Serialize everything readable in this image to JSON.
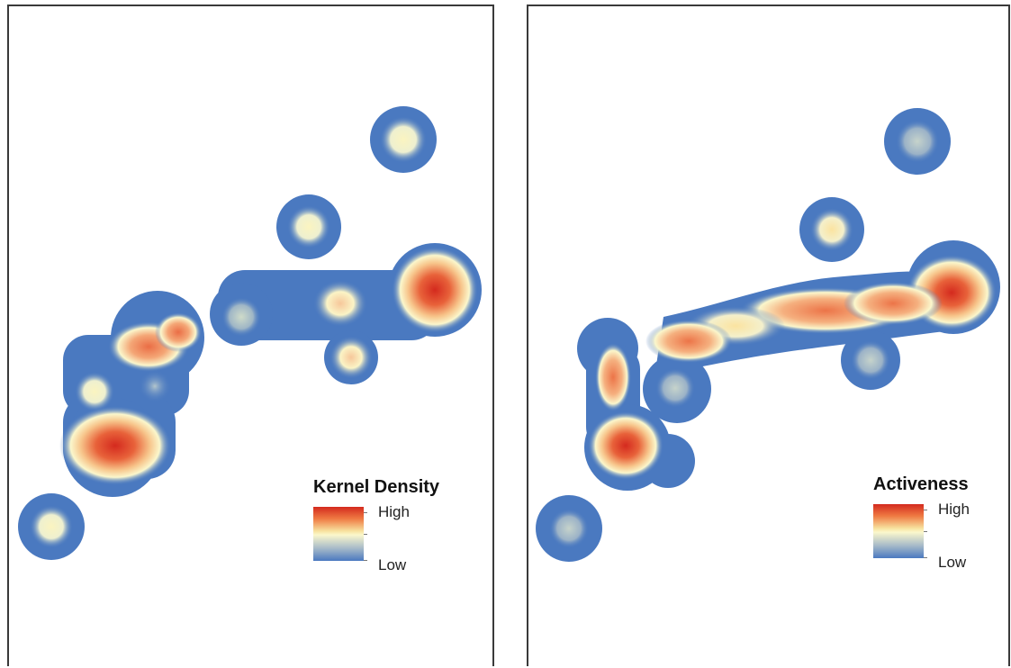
{
  "maps": [
    {
      "legend": {
        "title": "Kernel Density",
        "high": "High",
        "low": "Low"
      },
      "hotspots": [
        {
          "name": "north-east-isolated",
          "intensity": 0.55
        },
        {
          "name": "north-central-isolated",
          "intensity": 0.45
        },
        {
          "name": "east-peak",
          "intensity": 1.0
        },
        {
          "name": "central-east",
          "intensity": 0.7
        },
        {
          "name": "central-east-lower",
          "intensity": 0.6
        },
        {
          "name": "central",
          "intensity": 0.25
        },
        {
          "name": "west-upper",
          "intensity": 0.8
        },
        {
          "name": "west-middle",
          "intensity": 0.45
        },
        {
          "name": "south-west-peak",
          "intensity": 0.95
        },
        {
          "name": "far-south-west",
          "intensity": 0.5
        }
      ]
    },
    {
      "legend": {
        "title": "Activeness",
        "high": "High",
        "low": "Low"
      },
      "hotspots": [
        {
          "name": "north-east-isolated",
          "intensity": 0.2
        },
        {
          "name": "north-central-isolated",
          "intensity": 0.5
        },
        {
          "name": "east-peak",
          "intensity": 1.0
        },
        {
          "name": "central-corridor",
          "intensity": 0.75
        },
        {
          "name": "central-lower",
          "intensity": 0.2
        },
        {
          "name": "west-upper",
          "intensity": 0.8
        },
        {
          "name": "west-middle",
          "intensity": 0.6
        },
        {
          "name": "west-lower",
          "intensity": 0.3
        },
        {
          "name": "south-west-peak",
          "intensity": 0.95
        },
        {
          "name": "far-south-west",
          "intensity": 0.2
        }
      ]
    }
  ],
  "colors": {
    "low": "#4a79c0",
    "mid": "#fbf7cc",
    "high": "#d42a1e",
    "frame": "#3a3a3a"
  }
}
